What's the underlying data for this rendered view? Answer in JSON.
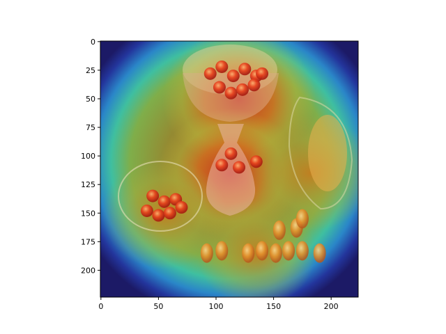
{
  "chart_data": {
    "type": "heatmap",
    "image_kind": "class-activation heatmap overlaid on a painting of cherries",
    "colormap": "jet",
    "title": "",
    "xlabel": "",
    "ylabel": "",
    "xlim": [
      0,
      223
    ],
    "ylim": [
      223,
      0
    ],
    "x_ticks": [
      0,
      50,
      100,
      150,
      200
    ],
    "y_ticks": [
      0,
      25,
      50,
      75,
      100,
      125,
      150,
      175,
      200
    ],
    "grid": false,
    "legend": "none",
    "activation_peaks": [
      {
        "region": "cherry bowl on stand",
        "x": 120,
        "y": 50,
        "level": 1.0
      },
      {
        "region": "stem and cherries",
        "x": 112,
        "y": 115,
        "level": 0.9
      },
      {
        "region": "right pitcher",
        "x": 182,
        "y": 115,
        "level": 0.75
      },
      {
        "region": "left glass bowl",
        "x": 55,
        "y": 150,
        "level": 0.7
      },
      {
        "region": "cherries on table",
        "x": 135,
        "y": 185,
        "level": 0.65
      }
    ]
  }
}
